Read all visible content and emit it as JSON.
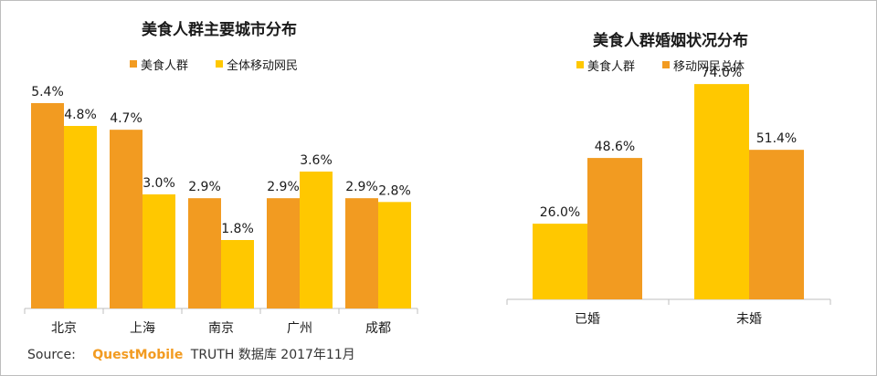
{
  "colors": {
    "orange": "#f29b21",
    "yellow": "#ffc800",
    "axis": "#bfbfbf"
  },
  "source": {
    "label": "Source:",
    "brand": "QuestMobile",
    "rest": "TRUTH 数据库 2017年11月"
  },
  "chart_data": [
    {
      "type": "bar",
      "title": "美食人群主要城市分布",
      "categories": [
        "北京",
        "上海",
        "南京",
        "广州",
        "成都"
      ],
      "series": [
        {
          "name": "美食人群",
          "color": "#f29b21",
          "values": [
            5.4,
            4.7,
            2.9,
            2.9,
            2.9
          ],
          "labels": [
            "5.4%",
            "4.7%",
            "2.9%",
            "2.9%",
            "2.9%"
          ]
        },
        {
          "name": "全体移动网民",
          "color": "#ffc800",
          "values": [
            4.8,
            3.0,
            1.8,
            3.6,
            2.8
          ],
          "labels": [
            "4.8%",
            "3.0%",
            "1.8%",
            "3.6%",
            "2.8%"
          ]
        }
      ],
      "ylim": [
        0,
        6
      ],
      "grid": false,
      "legend_position": "top"
    },
    {
      "type": "bar",
      "title": "美食人群婚姻状况分布",
      "categories": [
        "已婚",
        "未婚"
      ],
      "series": [
        {
          "name": "美食人群",
          "color": "#ffc800",
          "values": [
            26.0,
            74.0
          ],
          "labels": [
            "26.0%",
            "74.0%"
          ]
        },
        {
          "name": "移动网民总体",
          "color": "#f29b21",
          "values": [
            48.6,
            51.4
          ],
          "labels": [
            "48.6%",
            "51.4%"
          ]
        }
      ],
      "ylim": [
        0,
        80
      ],
      "grid": false,
      "legend_position": "top"
    }
  ]
}
